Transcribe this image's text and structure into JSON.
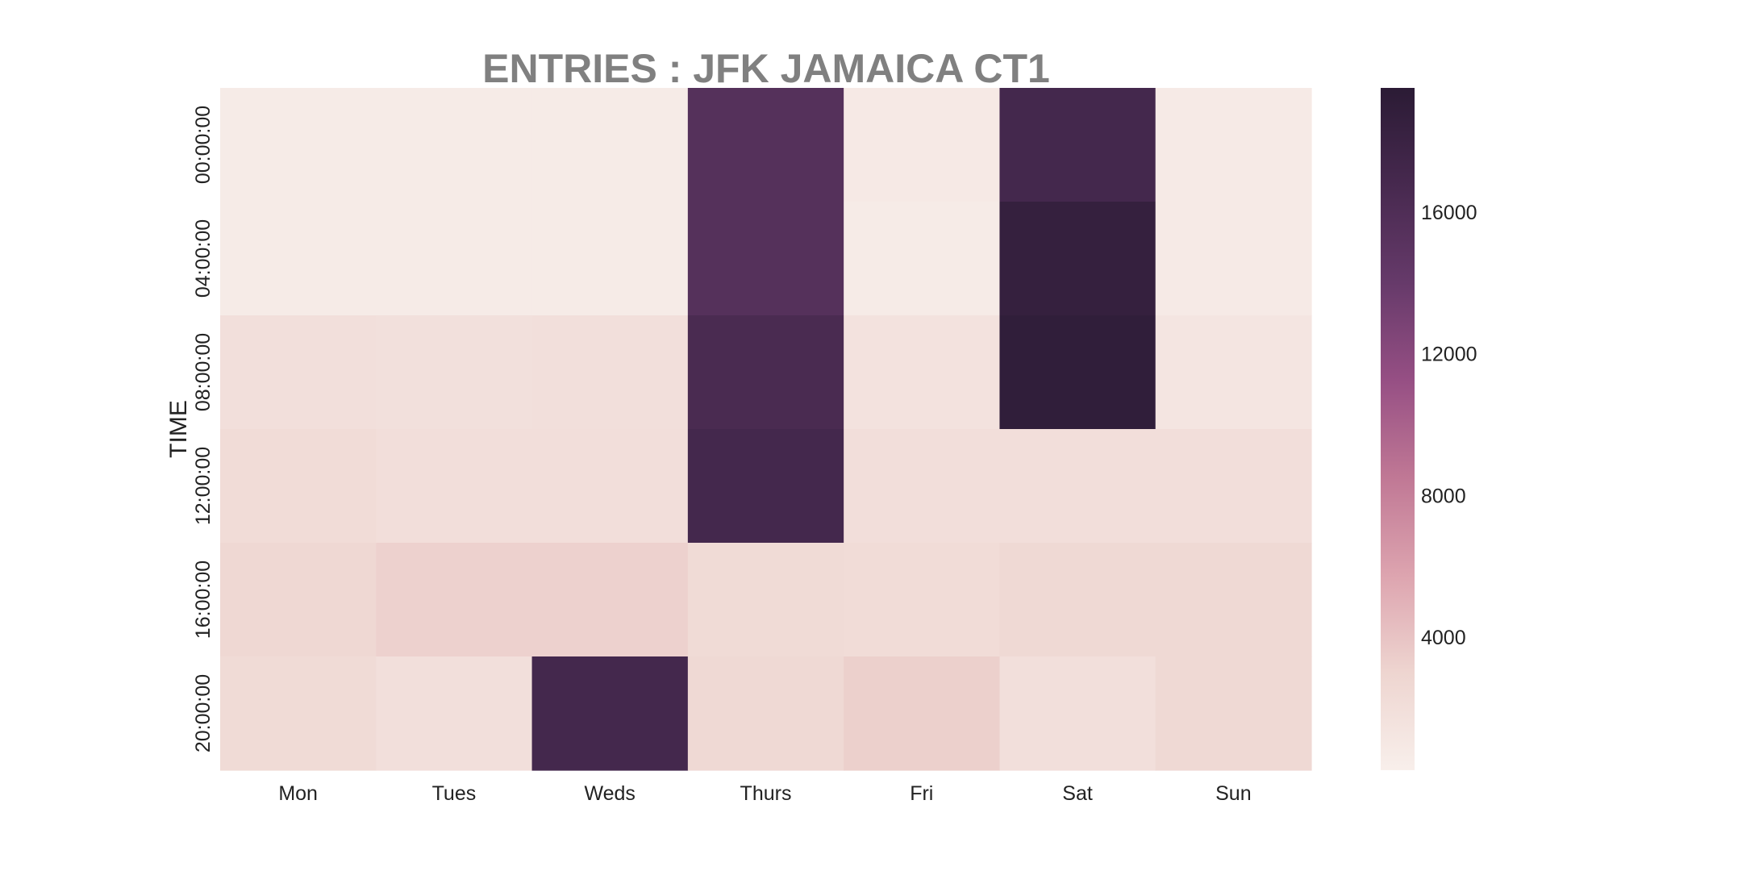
{
  "chart_data": {
    "type": "heatmap",
    "title": "ENTRIES : JFK JAMAICA CT1",
    "xlabel": "",
    "ylabel": "TIME",
    "x_categories": [
      "Mon",
      "Tues",
      "Weds",
      "Thurs",
      "Fri",
      "Sat",
      "Sun"
    ],
    "y_categories": [
      "00:00:00",
      "04:00:00",
      "08:00:00",
      "12:00:00",
      "16:00:00",
      "20:00:00"
    ],
    "values": [
      [
        700,
        700,
        700,
        15500,
        900,
        17000,
        800
      ],
      [
        700,
        700,
        700,
        15500,
        700,
        18500,
        800
      ],
      [
        1900,
        1800,
        1900,
        16500,
        1600,
        19000,
        1300
      ],
      [
        2300,
        2000,
        2000,
        17000,
        2000,
        2000,
        2000
      ],
      [
        2700,
        3200,
        3200,
        2400,
        2300,
        2600,
        2600
      ],
      [
        2400,
        1900,
        17000,
        2600,
        3300,
        1900,
        2600
      ]
    ],
    "colorbar": {
      "range": [
        250,
        19500
      ],
      "ticks": [
        4000,
        8000,
        12000,
        16000
      ]
    },
    "colormap": [
      "#f8efeb",
      "#eed5d0",
      "#dda4af",
      "#c07895",
      "#964f84",
      "#663a6a",
      "#47294f",
      "#2b1b35"
    ]
  }
}
